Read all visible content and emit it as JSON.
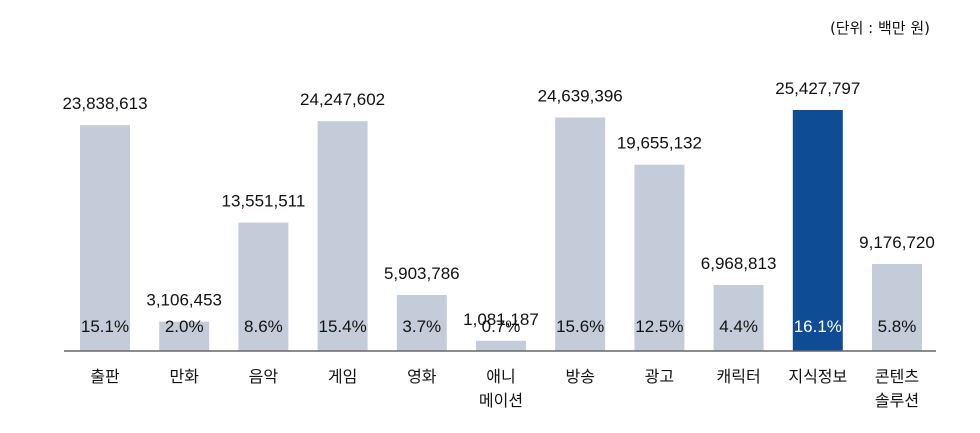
{
  "chart_data": {
    "type": "bar",
    "unit_note": "(단위 : 백만 원)",
    "categories": [
      [
        "출판"
      ],
      [
        "만화"
      ],
      [
        "음악"
      ],
      [
        "게임"
      ],
      [
        "영화"
      ],
      [
        "애니",
        "메이션"
      ],
      [
        "방송"
      ],
      [
        "광고"
      ],
      [
        "캐릭터"
      ],
      [
        "지식정보"
      ],
      [
        "콘텐츠",
        "솔루션"
      ]
    ],
    "values": [
      23838613,
      3106453,
      13551511,
      24247602,
      5903786,
      1081187,
      24639396,
      19655132,
      6968813,
      25427797,
      9176720
    ],
    "value_labels": [
      "23,838,613",
      "3,106,453",
      "13,551,511",
      "24,247,602",
      "5,903,786",
      "1,081,187",
      "24,639,396",
      "19,655,132",
      "6,968,813",
      "25,427,797",
      "9,176,720"
    ],
    "shares": [
      "15.1%",
      "2.0%",
      "8.6%",
      "15.4%",
      "3.7%",
      "0.7%",
      "15.6%",
      "12.5%",
      "4.4%",
      "16.1%",
      "5.8%"
    ],
    "highlight_index": 9,
    "ylim": [
      0,
      25427797
    ],
    "grid": false,
    "colors": {
      "bar": "#c5ccd9",
      "highlight": "#0f4c96",
      "axis": "#666666"
    }
  }
}
